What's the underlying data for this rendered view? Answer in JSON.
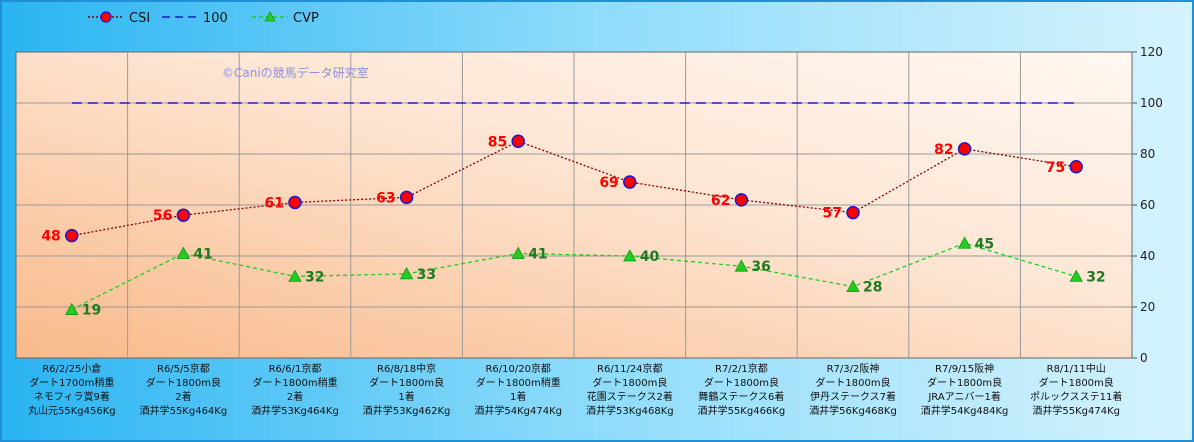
{
  "watermark": "©Caniの競馬データ研究室",
  "chart_data": {
    "type": "line",
    "ylim": [
      0,
      120
    ],
    "yticks": [
      0,
      20,
      40,
      60,
      80,
      100,
      120
    ],
    "y_axis_side": "right",
    "grid": true,
    "legend_position": "top-left",
    "categories": [
      [
        "R6/2/25小倉",
        "ダート1700m稍重",
        "ネモフィラ賞9着",
        "丸山元55Kg456Kg"
      ],
      [
        "R6/5/5京都",
        "ダート1800m良",
        "2着",
        "酒井学55Kg464Kg"
      ],
      [
        "R6/6/1京都",
        "ダート1800m稍重",
        "2着",
        "酒井学53Kg464Kg"
      ],
      [
        "R6/8/18中京",
        "ダート1800m良",
        "1着",
        "酒井学53Kg462Kg"
      ],
      [
        "R6/10/20京都",
        "ダート1800m稍重",
        "1着",
        "酒井学54Kg474Kg"
      ],
      [
        "R6/11/24京都",
        "ダート1800m良",
        "花園ステークス2着",
        "酒井学53Kg468Kg"
      ],
      [
        "R7/2/1京都",
        "ダート1800m良",
        "舞鶴ステークス6着",
        "酒井学55Kg466Kg"
      ],
      [
        "R7/3/2阪神",
        "ダート1800m良",
        "伊丹ステークス7着",
        "酒井学56Kg468Kg"
      ],
      [
        "R7/9/15阪神",
        "ダート1800m良",
        "JRAアニバー1着",
        "酒井学54Kg484Kg"
      ],
      [
        "R8/1/11中山",
        "ダート1800m良",
        "ポルックスステ11着",
        "酒井学55Kg474Kg"
      ]
    ],
    "series": [
      {
        "name": "CSI",
        "color": "#8b0000",
        "marker_color": "#ff0000",
        "marker_edge": "#1a1ad0",
        "marker": "circle",
        "dash": "dotted",
        "values": [
          48,
          56,
          61,
          63,
          85,
          69,
          62,
          57,
          82,
          75
        ]
      },
      {
        "name": "100",
        "color": "#1a1ad0",
        "marker": "none",
        "dash": "dashed",
        "values": [
          100,
          100,
          100,
          100,
          100,
          100,
          100,
          100,
          100,
          100
        ]
      },
      {
        "name": "CVP",
        "color": "#22cc22",
        "marker_color": "#22cc22",
        "marker": "triangle",
        "dash": "dashed",
        "values": [
          19,
          41,
          32,
          33,
          41,
          40,
          36,
          28,
          45,
          32
        ]
      }
    ]
  }
}
